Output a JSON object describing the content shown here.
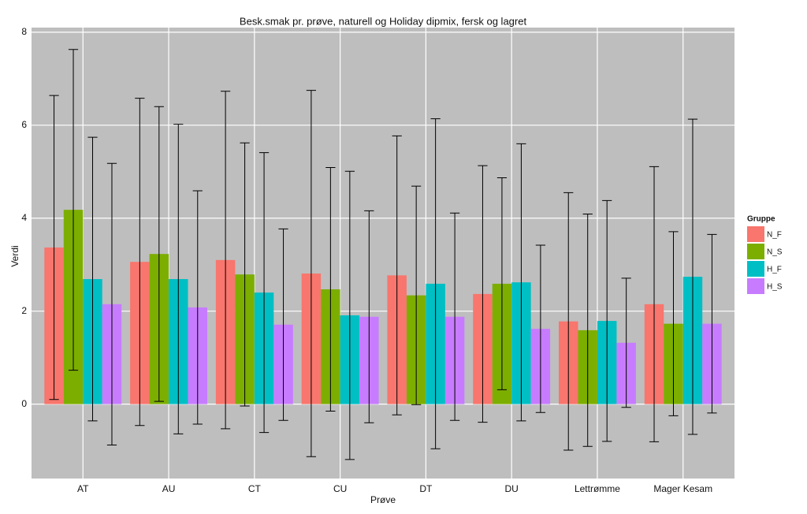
{
  "chart_data": {
    "type": "bar",
    "title": "Besk.smak pr. prøve, naturell og Holiday dipmix, fersk og lagret",
    "x_label": "Prøve",
    "y_label": "Verdi",
    "legend_title": "Gruppe",
    "categories": [
      "AT",
      "AU",
      "CT",
      "CU",
      "DT",
      "DU",
      "Lettrømme",
      "Mager Kesam"
    ],
    "series": [
      {
        "name": "N_F",
        "color": "#F8766D",
        "values": [
          3.37,
          3.06,
          3.1,
          2.81,
          2.77,
          2.37,
          1.78,
          2.15
        ],
        "errors": [
          3.27,
          3.52,
          3.63,
          3.94,
          3.0,
          2.76,
          2.77,
          2.96
        ]
      },
      {
        "name": "N_S",
        "color": "#7CAE00",
        "values": [
          4.18,
          3.23,
          2.79,
          2.47,
          2.34,
          2.59,
          1.59,
          1.73
        ],
        "errors": [
          3.45,
          3.17,
          2.83,
          2.62,
          2.35,
          2.28,
          2.5,
          1.98
        ]
      },
      {
        "name": "H_F",
        "color": "#00BFC4",
        "values": [
          2.69,
          2.69,
          2.4,
          1.91,
          2.59,
          2.62,
          1.79,
          2.74
        ],
        "errors": [
          3.05,
          3.33,
          3.01,
          3.1,
          3.55,
          2.98,
          2.59,
          3.39
        ]
      },
      {
        "name": "H_S",
        "color": "#C77CFF",
        "values": [
          2.15,
          2.08,
          1.71,
          1.88,
          1.88,
          1.62,
          1.32,
          1.73
        ],
        "errors": [
          3.03,
          2.51,
          2.06,
          2.28,
          2.23,
          1.8,
          1.39,
          1.92
        ]
      }
    ],
    "ylim": [
      -1.6,
      8.1
    ],
    "yticks": [
      0,
      2,
      4,
      6,
      8
    ],
    "grid": true,
    "legend": "right"
  }
}
